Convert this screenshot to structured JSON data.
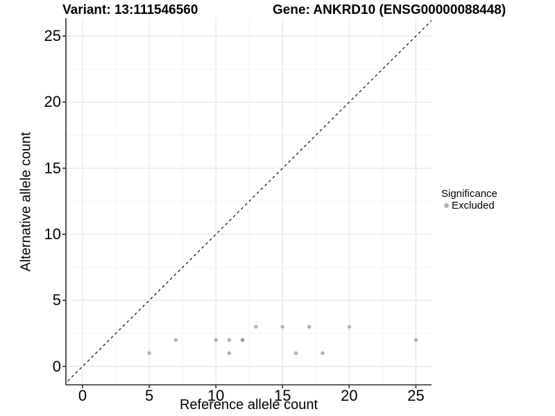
{
  "chart_data": {
    "type": "scatter",
    "titles": {
      "variant": "Variant: 13:111546560",
      "gene": "Gene: ANKRD10 (ENSG00000088448)"
    },
    "xlabel": "Reference allele count",
    "ylabel": "Alternative allele count",
    "xlim": [
      -1.25,
      26.2
    ],
    "ylim": [
      -1.4,
      26.4
    ],
    "x_ticks": [
      0,
      5,
      10,
      15,
      20,
      25
    ],
    "y_ticks": [
      0,
      5,
      10,
      15,
      20,
      25
    ],
    "grid": "major and minor gridlines, white background",
    "legend": {
      "title": "Significance",
      "position": "right",
      "items": [
        {
          "label": "Excluded",
          "color": "#b3b3b3"
        }
      ]
    },
    "reference_line": {
      "type": "identity y=x",
      "style": "dashed",
      "color": "#1a1a1a"
    },
    "series": [
      {
        "name": "Excluded",
        "color": "#b3b3b3",
        "points": [
          {
            "x": 5,
            "y": 1
          },
          {
            "x": 11,
            "y": 1
          },
          {
            "x": 16,
            "y": 1
          },
          {
            "x": 18,
            "y": 1
          },
          {
            "x": 7,
            "y": 2
          },
          {
            "x": 10,
            "y": 2
          },
          {
            "x": 11,
            "y": 2
          },
          {
            "x": 12,
            "y": 2,
            "darker": true
          },
          {
            "x": 25,
            "y": 2
          },
          {
            "x": 13,
            "y": 3
          },
          {
            "x": 15,
            "y": 3
          },
          {
            "x": 17,
            "y": 3
          },
          {
            "x": 20,
            "y": 3
          }
        ]
      }
    ]
  },
  "colors": {
    "point": "#b3b3b3",
    "point_dark": "#999999",
    "grid_major": "#e4e4e4",
    "grid_minor": "#f2f2f2",
    "axis_line": "#2b2b2b",
    "dashed_line": "#1a1a1a",
    "text": "#000000"
  }
}
